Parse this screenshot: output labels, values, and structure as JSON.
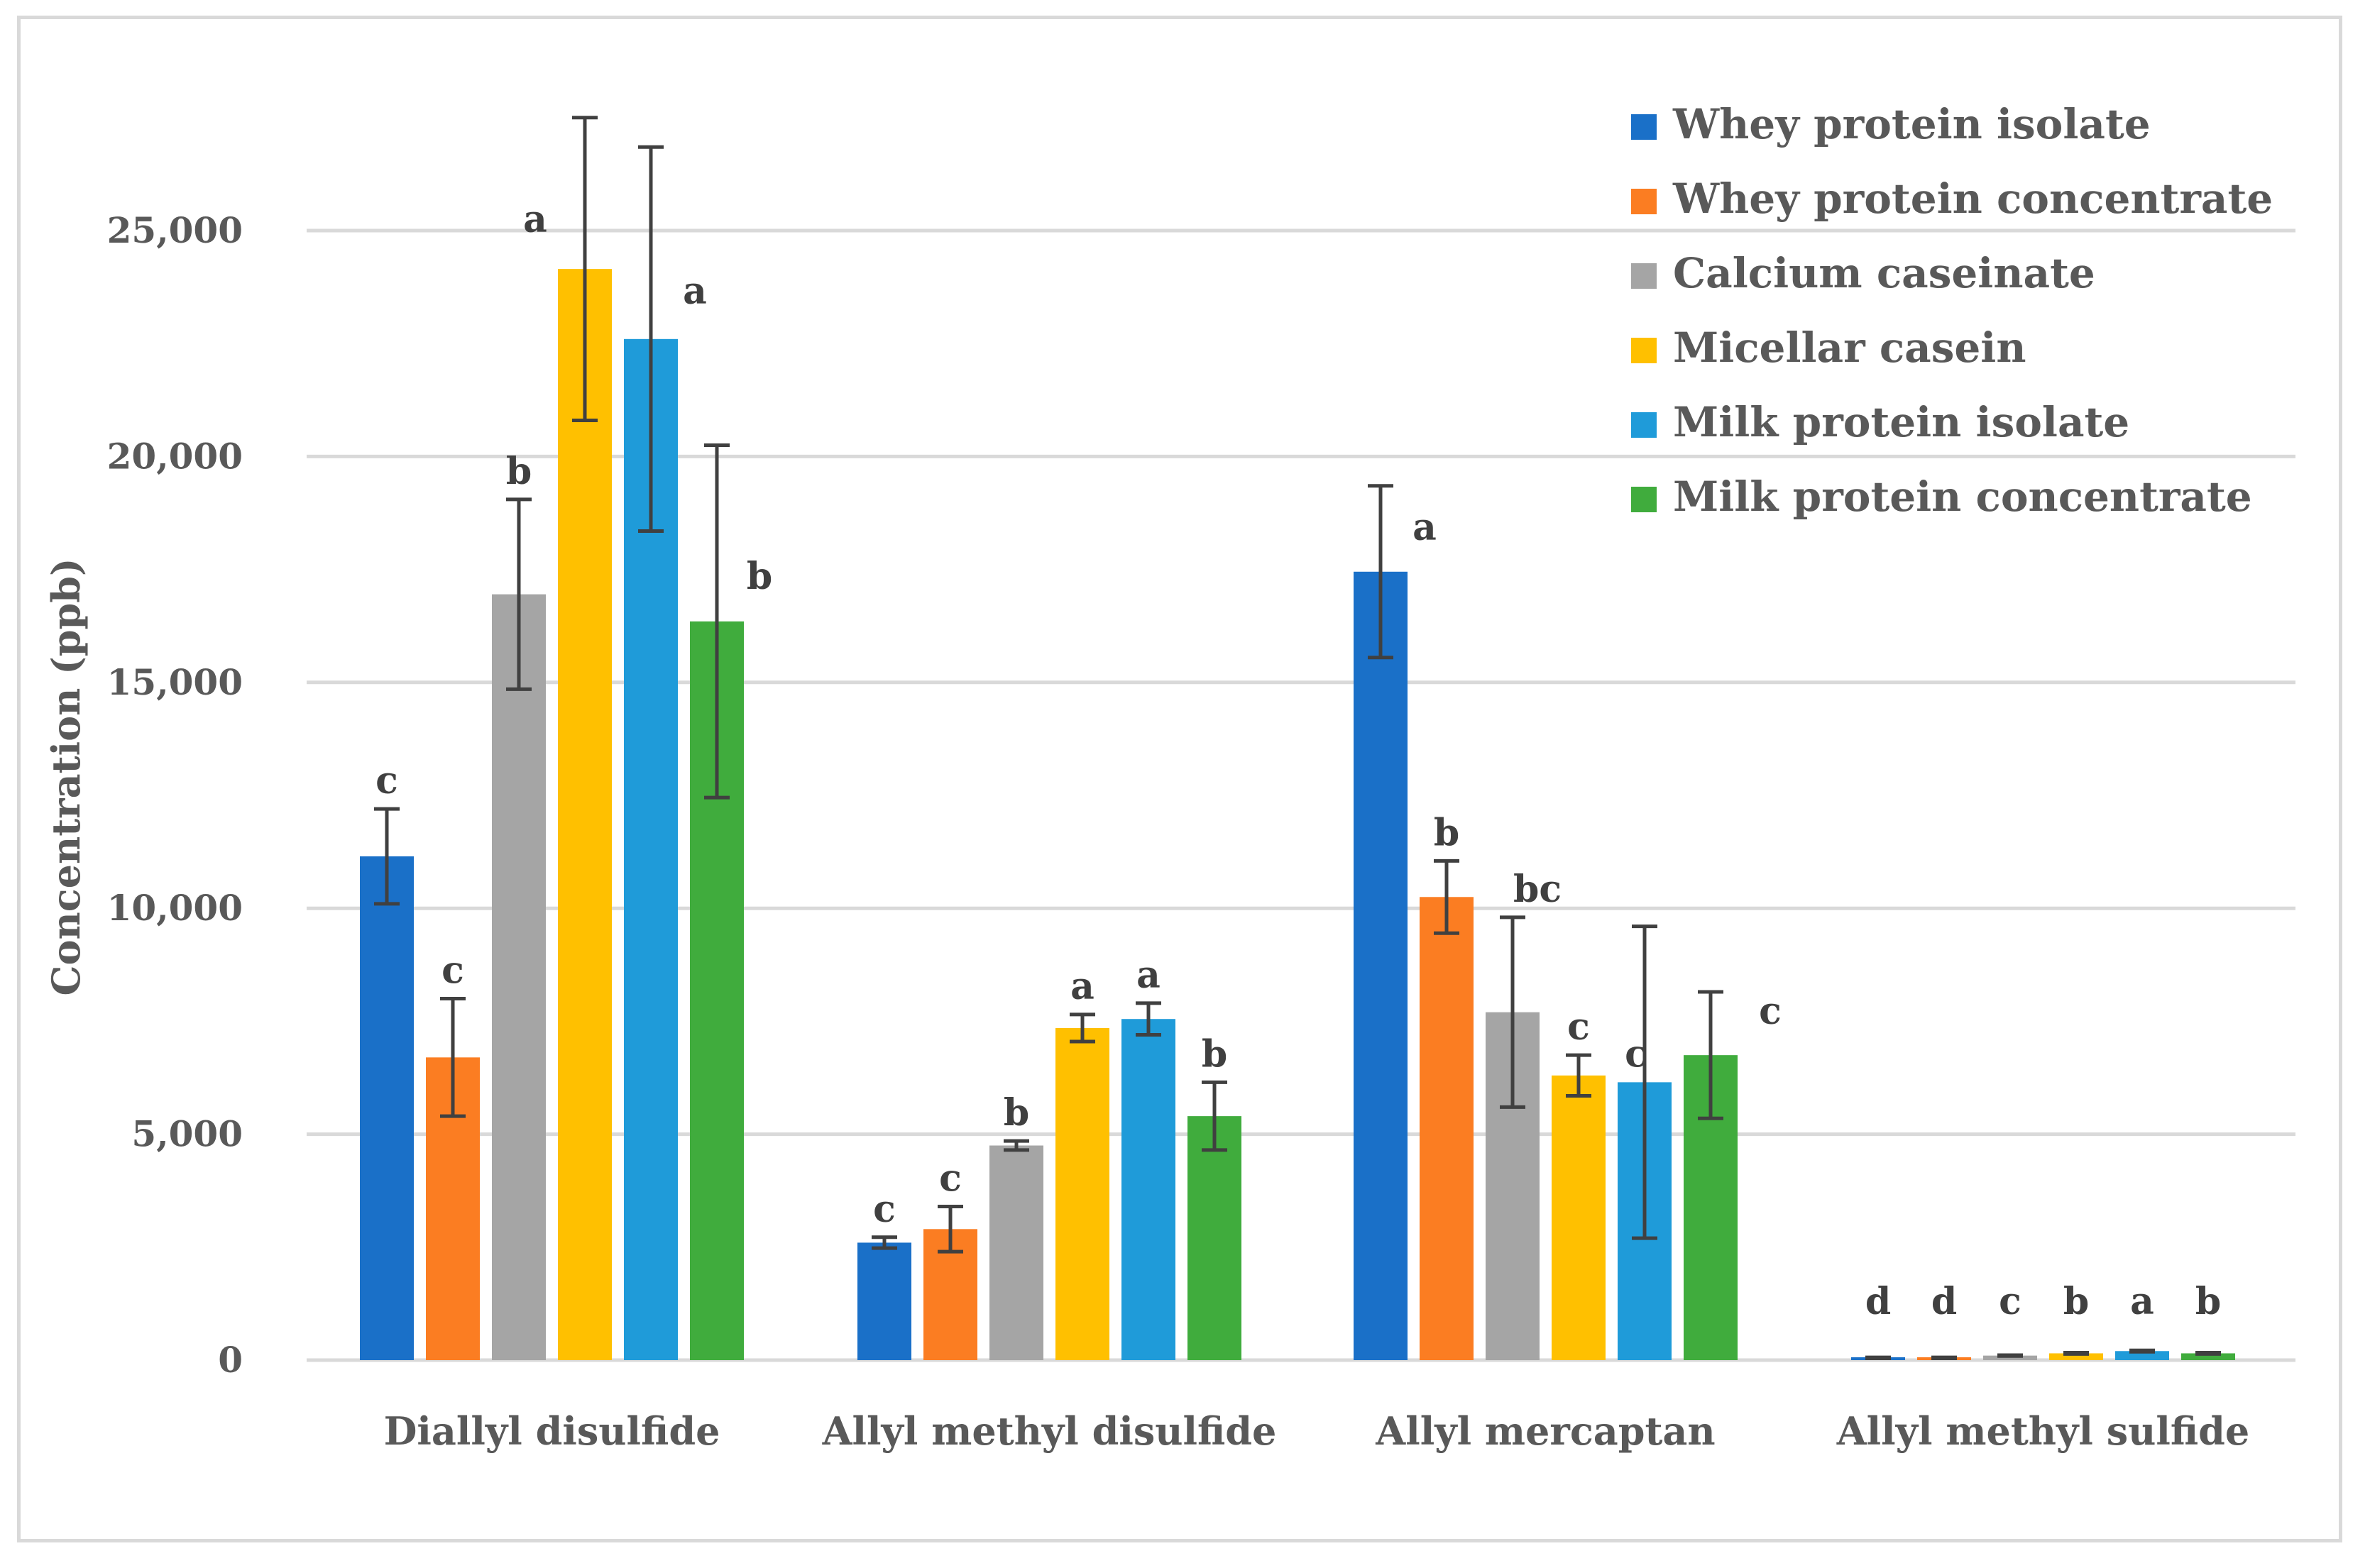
{
  "chart_data": {
    "type": "bar",
    "title": "",
    "xlabel": "",
    "ylabel": "Concentration (ppb)",
    "ylim": [
      0,
      27500
    ],
    "yticks": [
      0,
      5000,
      10000,
      15000,
      20000,
      25000
    ],
    "ytick_labels": [
      "0",
      "5,000",
      "10,000",
      "15,000",
      "20,000",
      "25,000"
    ],
    "grid": true,
    "legend_position": "top-right",
    "categories": [
      "Diallyl disulfide",
      "Allyl methyl disulfide",
      "Allyl mercaptan",
      "Allyl methyl sulfide"
    ],
    "series": [
      {
        "name": "Whey protein isolate",
        "color": "#1a70c8",
        "values": [
          11150,
          2600,
          17450,
          50
        ],
        "errors": [
          1050,
          120,
          1900,
          10
        ],
        "letters": [
          "c",
          "c",
          "a",
          "d"
        ]
      },
      {
        "name": "Whey protein concentrate",
        "color": "#fb7d22",
        "values": [
          6700,
          2900,
          10250,
          50
        ],
        "errors": [
          1300,
          500,
          800,
          10
        ],
        "letters": [
          "c",
          "c",
          "b",
          "d"
        ]
      },
      {
        "name": "Calcium caseinate",
        "color": "#a5a5a5",
        "values": [
          16950,
          4750,
          7700,
          100
        ],
        "errors": [
          2100,
          100,
          2100,
          10
        ],
        "letters": [
          "b",
          "b",
          "bc",
          "c"
        ]
      },
      {
        "name": "Micellar casein",
        "color": "#ffc000",
        "values": [
          24150,
          7350,
          6300,
          150
        ],
        "errors": [
          3350,
          300,
          450,
          15
        ],
        "letters": [
          "a",
          "a",
          "c",
          "b"
        ]
      },
      {
        "name": "Milk protein isolate",
        "color": "#1f9bd9",
        "values": [
          22600,
          7550,
          6150,
          200
        ],
        "errors": [
          4250,
          350,
          3450,
          15
        ],
        "letters": [
          "a",
          "a",
          "c",
          "a"
        ]
      },
      {
        "name": "Milk protein concentrate",
        "color": "#40ac3d",
        "values": [
          16350,
          5400,
          6750,
          150
        ],
        "errors": [
          3900,
          750,
          1400,
          15
        ],
        "letters": [
          "b",
          "b",
          "c",
          "b"
        ]
      }
    ]
  }
}
